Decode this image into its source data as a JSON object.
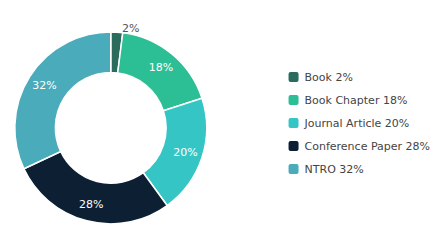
{
  "chart_data": {
    "type": "pie",
    "categories": [
      "Book 2%",
      "Book Chapter 18%",
      "Journal Article 20%",
      "Conference Paper 28%",
      "NTRO 32%"
    ],
    "values": [
      2,
      18,
      20,
      28,
      32
    ],
    "value_labels": [
      "2%",
      "18%",
      "20%",
      "28%",
      "32%"
    ],
    "colors": [
      "#2a6b5e",
      "#2cbf96",
      "#36c5c5",
      "#0d1f33",
      "#4aabba"
    ],
    "data_labels": true,
    "legend": "right"
  }
}
